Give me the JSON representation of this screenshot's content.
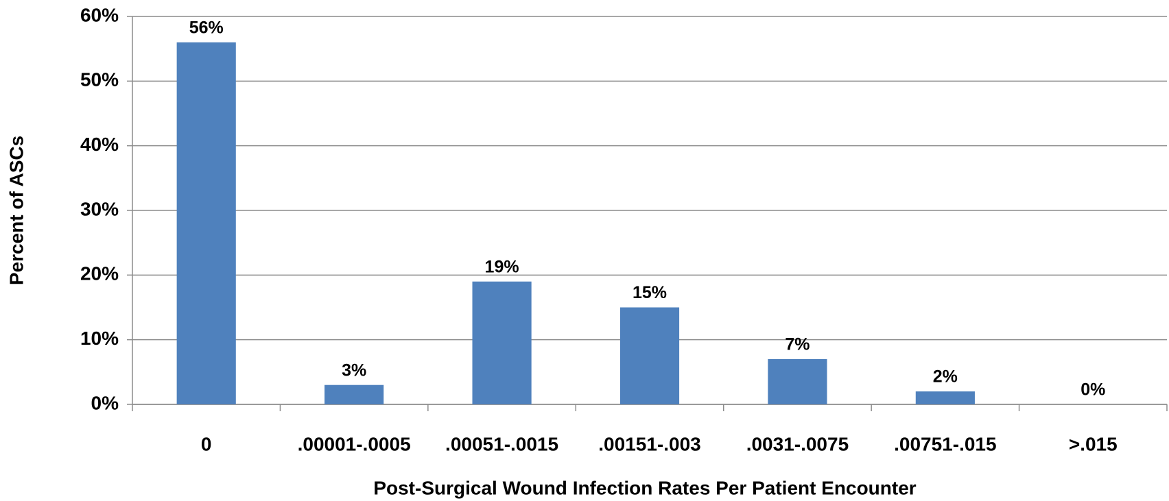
{
  "chart_data": {
    "type": "bar",
    "x_label": "Post-Surgical Wound Infection Rates Per Patient Encounter",
    "y_label": "Percent of ASCs",
    "categories": [
      "0",
      ".00001-.0005",
      ".00051-.0015",
      ".00151-.003",
      ".0031-.0075",
      ".00751-.015",
      ">.015"
    ],
    "values": [
      56,
      3,
      19,
      15,
      7,
      2,
      0
    ],
    "value_labels": [
      "56%",
      "3%",
      "19%",
      "15%",
      "7%",
      "2%",
      "0%"
    ],
    "color": "#4f81bd",
    "ylim": [
      0,
      60
    ],
    "yticks": [
      {
        "value": 0,
        "label": "0%"
      },
      {
        "value": 10,
        "label": "10%"
      },
      {
        "value": 20,
        "label": "20%"
      },
      {
        "value": 30,
        "label": "30%"
      },
      {
        "value": 40,
        "label": "40%"
      },
      {
        "value": 50,
        "label": "50%"
      },
      {
        "value": 60,
        "label": "60%"
      }
    ],
    "grid": true
  }
}
